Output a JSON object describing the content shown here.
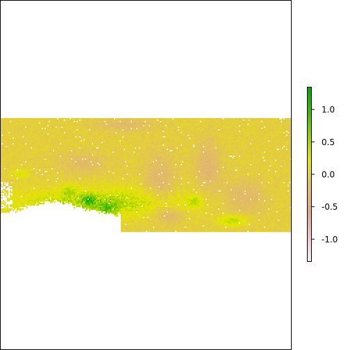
{
  "chart_data": {
    "type": "heatmap",
    "title": "",
    "xlabel": "",
    "ylabel": "",
    "colorbar": {
      "range": [
        -1.35,
        1.35
      ],
      "ticks": [
        -1.0,
        -0.5,
        0.0,
        0.5,
        1.0
      ],
      "tick_labels": [
        "-1.0",
        "-0.5",
        "0.0",
        "0.5",
        "1.0"
      ],
      "palette": [
        "#F2F2F2",
        "#EEC3CF",
        "#E0A882",
        "#E2C05E",
        "#E6E600",
        "#9AD200",
        "#3CB800",
        "#00A600"
      ]
    },
    "raster": {
      "cols": 210,
      "rows": 82,
      "typical_value": -0.05,
      "zones": [
        {
          "part": "upper band",
          "value_range": [
            -0.4,
            0.1
          ]
        },
        {
          "part": "lower-left band",
          "value_range": [
            0.2,
            1.1
          ]
        },
        {
          "part": "bottom-left patch",
          "value": "NA"
        }
      ]
    }
  }
}
